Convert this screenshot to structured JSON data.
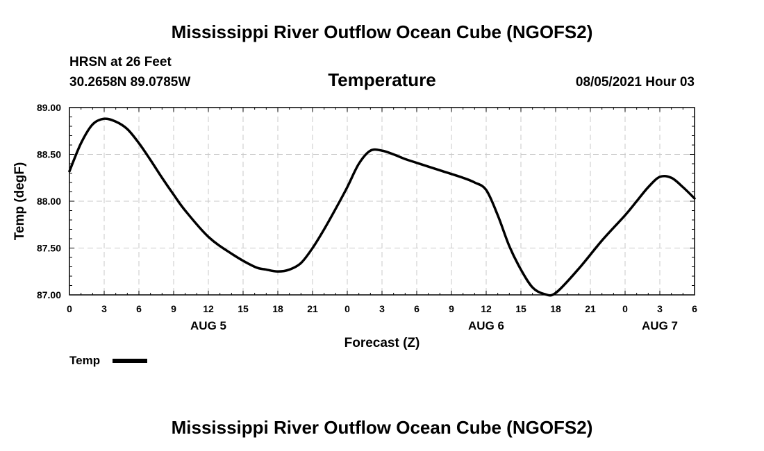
{
  "page": {
    "title_top": "Mississippi River Outflow Ocean Cube (NGOFS2)",
    "title_bottom": "Mississippi River Outflow Ocean Cube (NGOFS2)",
    "station": "HRSN at 26 Feet",
    "coords": "30.2658N  89.0785W",
    "datetime": "08/05/2021 Hour 03"
  },
  "chart_data": {
    "type": "line",
    "title": "Temperature",
    "xlabel": "Forecast (Z)",
    "ylabel": "Temp (degF)",
    "xlim": [
      0,
      54
    ],
    "ylim": [
      87.0,
      89.0
    ],
    "yticks": [
      "87.00",
      "87.50",
      "88.00",
      "88.50",
      "89.00"
    ],
    "xtick_labels": [
      "0",
      "3",
      "6",
      "9",
      "12",
      "15",
      "18",
      "21",
      "0",
      "3",
      "6",
      "9",
      "12",
      "15",
      "18",
      "21",
      "0",
      "3",
      "6"
    ],
    "day_labels": [
      {
        "label": "AUG 5",
        "hour": 12
      },
      {
        "label": "AUG 6",
        "hour": 36
      },
      {
        "label": "AUG 7",
        "hour": 51
      }
    ],
    "grid": true,
    "legend": "bottom-left",
    "series": [
      {
        "name": "Temp",
        "color": "#000000",
        "x": [
          0,
          1,
          2,
          3,
          4,
          5,
          6,
          7,
          8,
          9,
          10,
          12,
          14,
          16,
          17,
          18,
          19,
          20,
          21,
          22,
          23,
          24,
          25,
          26,
          27,
          28,
          29,
          30,
          32,
          34,
          35,
          36,
          37,
          38,
          39,
          40,
          41,
          42,
          44,
          46,
          48,
          49,
          50,
          51,
          52,
          53,
          54
        ],
        "values": [
          88.32,
          88.62,
          88.82,
          88.88,
          88.85,
          88.77,
          88.62,
          88.44,
          88.25,
          88.07,
          87.9,
          87.62,
          87.44,
          87.3,
          87.27,
          87.25,
          87.27,
          87.34,
          87.5,
          87.7,
          87.92,
          88.15,
          88.4,
          88.54,
          88.54,
          88.5,
          88.45,
          88.41,
          88.33,
          88.25,
          88.2,
          88.12,
          87.85,
          87.52,
          87.27,
          87.08,
          87.01,
          87.02,
          87.28,
          87.58,
          87.85,
          88.0,
          88.15,
          88.26,
          88.25,
          88.15,
          88.03
        ]
      }
    ]
  }
}
